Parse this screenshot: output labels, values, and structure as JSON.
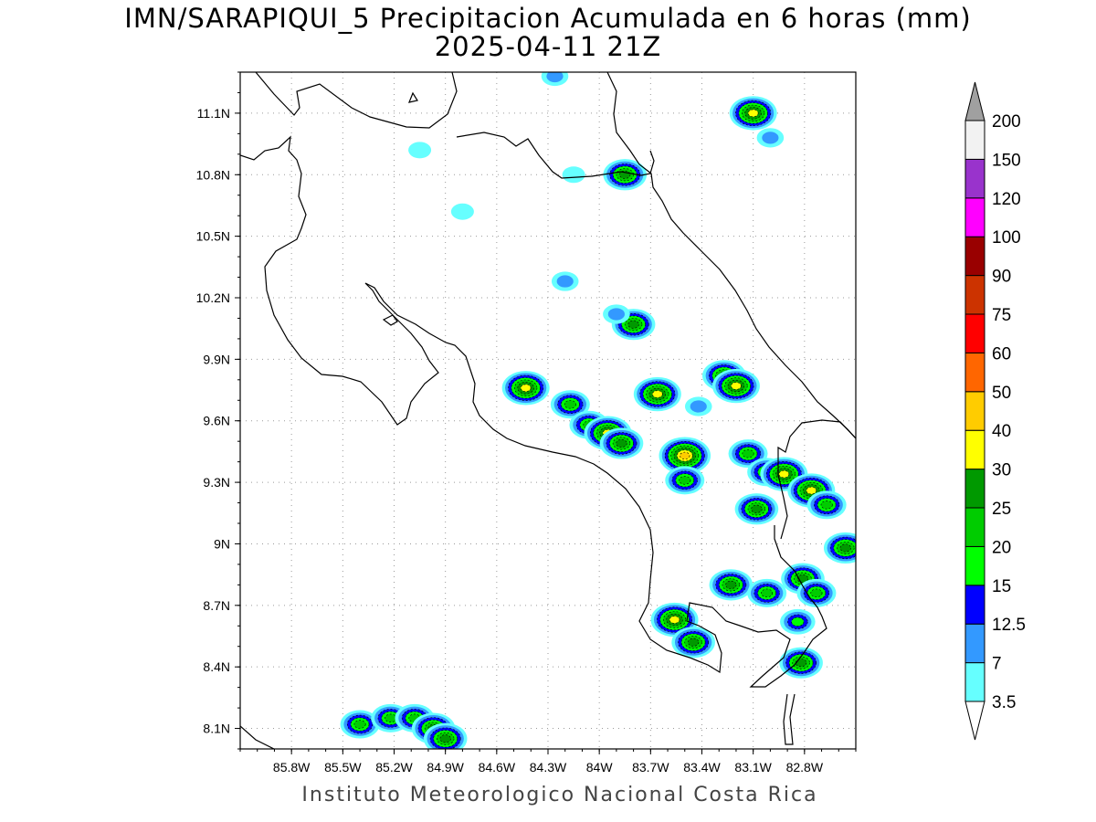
{
  "title": {
    "line1": "IMN/SARAPIQUI_5 Precipitacion Acumulada en 6 horas (mm)",
    "line2": "2025-04-11 21Z"
  },
  "map": {
    "lon_range": [
      -86.1,
      -82.5
    ],
    "lat_range": [
      8.0,
      11.3
    ],
    "grid": true,
    "lat_ticks": [
      {
        "value": 11.1,
        "label": "11.1N"
      },
      {
        "value": 10.8,
        "label": "10.8N"
      },
      {
        "value": 10.5,
        "label": "10.5N"
      },
      {
        "value": 10.2,
        "label": "10.2N"
      },
      {
        "value": 9.9,
        "label": "9.9N"
      },
      {
        "value": 9.6,
        "label": "9.6N"
      },
      {
        "value": 9.3,
        "label": "9.3N"
      },
      {
        "value": 9.0,
        "label": "9N"
      },
      {
        "value": 8.7,
        "label": "8.7N"
      },
      {
        "value": 8.4,
        "label": "8.4N"
      },
      {
        "value": 8.1,
        "label": "8.1N"
      }
    ],
    "lon_ticks": [
      {
        "value": -85.8,
        "label": "85.8W"
      },
      {
        "value": -85.5,
        "label": "85.5W"
      },
      {
        "value": -85.2,
        "label": "85.2W"
      },
      {
        "value": -84.9,
        "label": "84.9W"
      },
      {
        "value": -84.6,
        "label": "84.6W"
      },
      {
        "value": -84.3,
        "label": "84.3W"
      },
      {
        "value": -84.0,
        "label": "84W"
      },
      {
        "value": -83.7,
        "label": "83.7W"
      },
      {
        "value": -83.4,
        "label": "83.4W"
      },
      {
        "value": -83.1,
        "label": "83.1W"
      },
      {
        "value": -82.8,
        "label": "82.8W"
      }
    ]
  },
  "colorbar": {
    "labels": [
      "3.5",
      "7",
      "12.5",
      "15",
      "20",
      "25",
      "30",
      "40",
      "50",
      "60",
      "75",
      "90",
      "100",
      "120",
      "150",
      "200"
    ],
    "colors": [
      "#66ffff",
      "#3399ff",
      "#0000ff",
      "#00ff00",
      "#00cc00",
      "#009900",
      "#ffff00",
      "#ffcc00",
      "#ff6600",
      "#ff0000",
      "#cc3300",
      "#990000",
      "#ff00ff",
      "#9933cc",
      "#f2f2f2"
    ],
    "over_color": "#a0a0a0"
  },
  "credit": "Instituto Meteorologico Nacional Costa Rica",
  "precip_cells": [
    {
      "lon": -84.26,
      "lat": 11.28,
      "mm": 12
    },
    {
      "lon": -83.1,
      "lat": 11.1,
      "mm": 35
    },
    {
      "lon": -83.0,
      "lat": 10.98,
      "mm": 7
    },
    {
      "lon": -85.05,
      "lat": 10.92,
      "mm": 5
    },
    {
      "lon": -83.85,
      "lat": 10.8,
      "mm": 26
    },
    {
      "lon": -84.15,
      "lat": 10.8,
      "mm": 5
    },
    {
      "lon": -84.8,
      "lat": 10.62,
      "mm": 4
    },
    {
      "lon": -84.2,
      "lat": 10.28,
      "mm": 12
    },
    {
      "lon": -83.8,
      "lat": 10.07,
      "mm": 25
    },
    {
      "lon": -83.9,
      "lat": 10.12,
      "mm": 12
    },
    {
      "lon": -84.43,
      "lat": 9.76,
      "mm": 35
    },
    {
      "lon": -83.66,
      "lat": 9.73,
      "mm": 35
    },
    {
      "lon": -83.27,
      "lat": 9.82,
      "mm": 28
    },
    {
      "lon": -83.2,
      "lat": 9.77,
      "mm": 30
    },
    {
      "lon": -84.17,
      "lat": 9.68,
      "mm": 22
    },
    {
      "lon": -83.42,
      "lat": 9.67,
      "mm": 12
    },
    {
      "lon": -84.06,
      "lat": 9.58,
      "mm": 22
    },
    {
      "lon": -83.95,
      "lat": 9.54,
      "mm": 35
    },
    {
      "lon": -83.87,
      "lat": 9.49,
      "mm": 25
    },
    {
      "lon": -83.5,
      "lat": 9.43,
      "mm": 45
    },
    {
      "lon": -83.5,
      "lat": 9.31,
      "mm": 22
    },
    {
      "lon": -83.13,
      "lat": 9.44,
      "mm": 22
    },
    {
      "lon": -83.02,
      "lat": 9.35,
      "mm": 22
    },
    {
      "lon": -82.92,
      "lat": 9.34,
      "mm": 35
    },
    {
      "lon": -83.08,
      "lat": 9.17,
      "mm": 25
    },
    {
      "lon": -82.76,
      "lat": 9.26,
      "mm": 35
    },
    {
      "lon": -82.67,
      "lat": 9.19,
      "mm": 22
    },
    {
      "lon": -82.56,
      "lat": 8.98,
      "mm": 25
    },
    {
      "lon": -83.23,
      "lat": 8.8,
      "mm": 25
    },
    {
      "lon": -83.02,
      "lat": 8.76,
      "mm": 20
    },
    {
      "lon": -82.81,
      "lat": 8.83,
      "mm": 25
    },
    {
      "lon": -82.73,
      "lat": 8.76,
      "mm": 22
    },
    {
      "lon": -83.56,
      "lat": 8.63,
      "mm": 35
    },
    {
      "lon": -83.45,
      "lat": 8.52,
      "mm": 25
    },
    {
      "lon": -82.84,
      "lat": 8.62,
      "mm": 15
    },
    {
      "lon": -82.82,
      "lat": 8.42,
      "mm": 25
    },
    {
      "lon": -85.4,
      "lat": 8.12,
      "mm": 22
    },
    {
      "lon": -85.22,
      "lat": 8.15,
      "mm": 22
    },
    {
      "lon": -85.08,
      "lat": 8.15,
      "mm": 22
    },
    {
      "lon": -84.97,
      "lat": 8.1,
      "mm": 25
    },
    {
      "lon": -84.9,
      "lat": 8.05,
      "mm": 25
    }
  ]
}
